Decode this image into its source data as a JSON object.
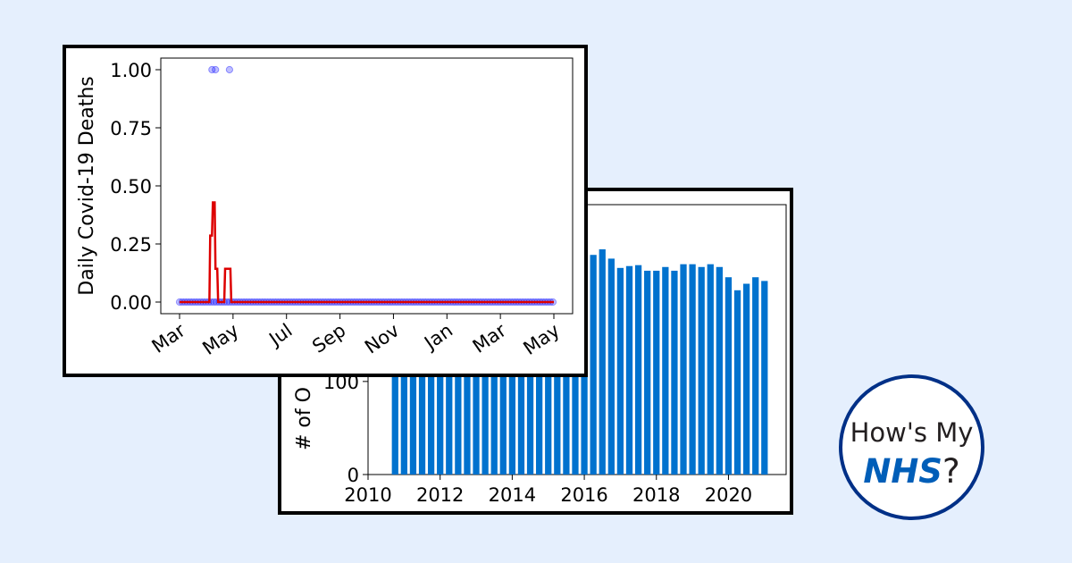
{
  "chart_data": [
    {
      "type": "bar",
      "title": "",
      "xlabel": "",
      "ylabel": "# of O",
      "color": "#0072ce",
      "xlim": [
        2010,
        2021.6
      ],
      "ylim": [
        0,
        290
      ],
      "xticks": [
        "2010",
        "2012",
        "2014",
        "2016",
        "2018",
        "2020"
      ],
      "yticks": [
        "0",
        "100"
      ],
      "x": [
        2010.75,
        2011.0,
        2011.25,
        2011.5,
        2011.75,
        2012.0,
        2012.25,
        2012.5,
        2012.75,
        2013.0,
        2013.25,
        2013.5,
        2013.75,
        2014.0,
        2014.25,
        2014.5,
        2014.75,
        2015.0,
        2015.25,
        2015.5,
        2015.75,
        2016.0,
        2016.25,
        2016.5,
        2016.75,
        2017.0,
        2017.25,
        2017.5,
        2017.75,
        2018.0,
        2018.25,
        2018.5,
        2018.75,
        2019.0,
        2019.25,
        2019.5,
        2019.75,
        2020.0,
        2020.25,
        2020.5,
        2020.75,
        2021.0
      ],
      "values": [
        250,
        250,
        250,
        250,
        250,
        250,
        250,
        250,
        250,
        250,
        250,
        250,
        250,
        250,
        250,
        250,
        250,
        250,
        250,
        250,
        250,
        250,
        236,
        242,
        232,
        222,
        224,
        225,
        219,
        219,
        223,
        219,
        226,
        226,
        223,
        226,
        223,
        212,
        198,
        205,
        212,
        208
      ]
    },
    {
      "type": "line",
      "title": "",
      "xlabel": "",
      "ylabel": "Daily Covid-19 Deaths",
      "ylim": [
        -0.05,
        1.05
      ],
      "xticks": [
        "Mar",
        "May",
        "Jul",
        "Sep",
        "Nov",
        "Jan",
        "Mar",
        "May"
      ],
      "yticks": [
        "0.00",
        "0.25",
        "0.50",
        "0.75",
        "1.00"
      ],
      "xrange_days": [
        0,
        427
      ],
      "series": [
        {
          "kind": "scatter",
          "color": "#0000ff",
          "points": [
            [
              37,
              1
            ],
            [
              41,
              1
            ],
            [
              57,
              1
            ]
          ]
        },
        {
          "kind": "line",
          "color": "#dd0000",
          "points": [
            [
              0,
              0
            ],
            [
              34,
              0
            ],
            [
              35,
              0.286
            ],
            [
              37,
              0.286
            ],
            [
              38,
              0.429
            ],
            [
              40,
              0.429
            ],
            [
              41,
              0.143
            ],
            [
              43,
              0.143
            ],
            [
              44,
              0
            ],
            [
              51,
              0
            ],
            [
              52,
              0.143
            ],
            [
              58,
              0.143
            ],
            [
              59,
              0
            ],
            [
              427,
              0
            ]
          ]
        }
      ]
    }
  ],
  "logo": {
    "line1": "How's My",
    "nhs": "NHS",
    "question": "?"
  }
}
